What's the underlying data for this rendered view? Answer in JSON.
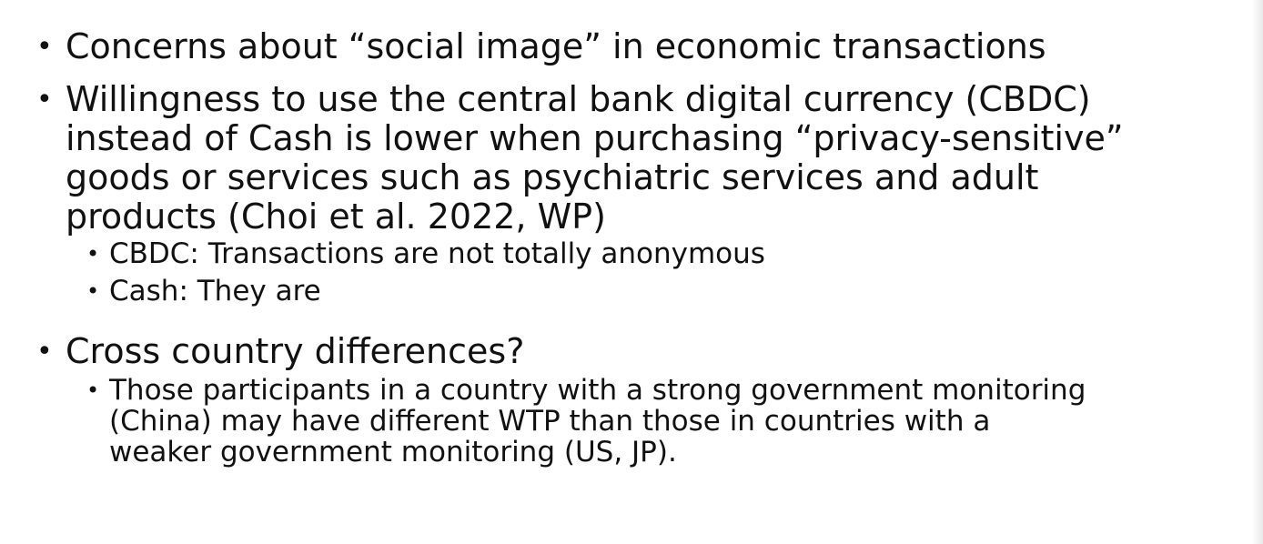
{
  "bullets": {
    "b1": {
      "text": "Concerns about “social image” in economic transactions"
    },
    "b2": {
      "lines": [
        "Willingness to use the central bank digital currency (CBDC)",
        "instead of Cash is lower when purchasing “privacy-sensitive”",
        "goods or services such as psychiatric services and adult",
        "products (Choi et al. 2022, WP)"
      ],
      "subs": [
        "CBDC: Transactions are not totally anonymous",
        "Cash: They are"
      ]
    },
    "b3": {
      "text": "Cross country differences?",
      "sub_lines": [
        "Those participants in a country with a strong government monitoring",
        "(China) may have different WTP than those in countries with a",
        "weaker government monitoring (US, JP)."
      ]
    }
  }
}
